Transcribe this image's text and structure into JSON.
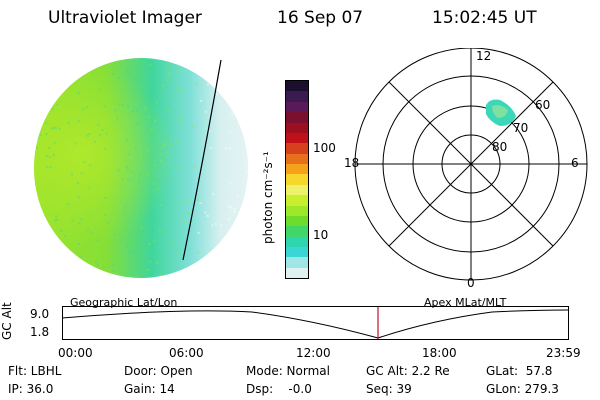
{
  "header": {
    "title": "Ultraviolet Imager",
    "date": "16 Sep 07",
    "time": "15:02:45 UT"
  },
  "colorbar": {
    "unit_label": "photon cm⁻²s⁻¹",
    "tick_labels": [
      "100",
      "10"
    ],
    "colors": [
      "#1a0f2e",
      "#3a1a4f",
      "#5a1a5a",
      "#7a1030",
      "#9b0f1e",
      "#c0101a",
      "#d6401c",
      "#e8701c",
      "#f5a21a",
      "#f7d82a",
      "#eef26a",
      "#c8ef2e",
      "#9ee82a",
      "#6edc2a",
      "#40d66a",
      "#2ed6b0",
      "#3ad6d6",
      "#a0e6e6",
      "#dff1f1"
    ]
  },
  "polar": {
    "mlt_labels": {
      "top": "12",
      "left": "18",
      "right": "6",
      "bottom": "0"
    },
    "lat_labels": [
      "60",
      "70",
      "80"
    ]
  },
  "timeline": {
    "y_axis_label": "GC Alt",
    "y_ticks": [
      "9.0",
      "1.8"
    ],
    "left_caption": "Geographic Lat/Lon",
    "right_caption": "Apex MLat/MLT",
    "x_ticks": [
      "00:00",
      "06:00",
      "12:00",
      "18:00",
      "23:59"
    ],
    "marker_color": "#c0102a"
  },
  "status": {
    "filter": "Flt: LBHL",
    "ip": "IP: 36.0",
    "door": "Door: Open",
    "gain": "Gain: 14",
    "mode": "Mode: Normal",
    "dsp": "Dsp:    -0.0",
    "gc_alt": "GC Alt: 2.2 Re",
    "seq": "Seq: 39",
    "glat": "GLat:  57.8",
    "glon": "GLon: 279.3"
  }
}
